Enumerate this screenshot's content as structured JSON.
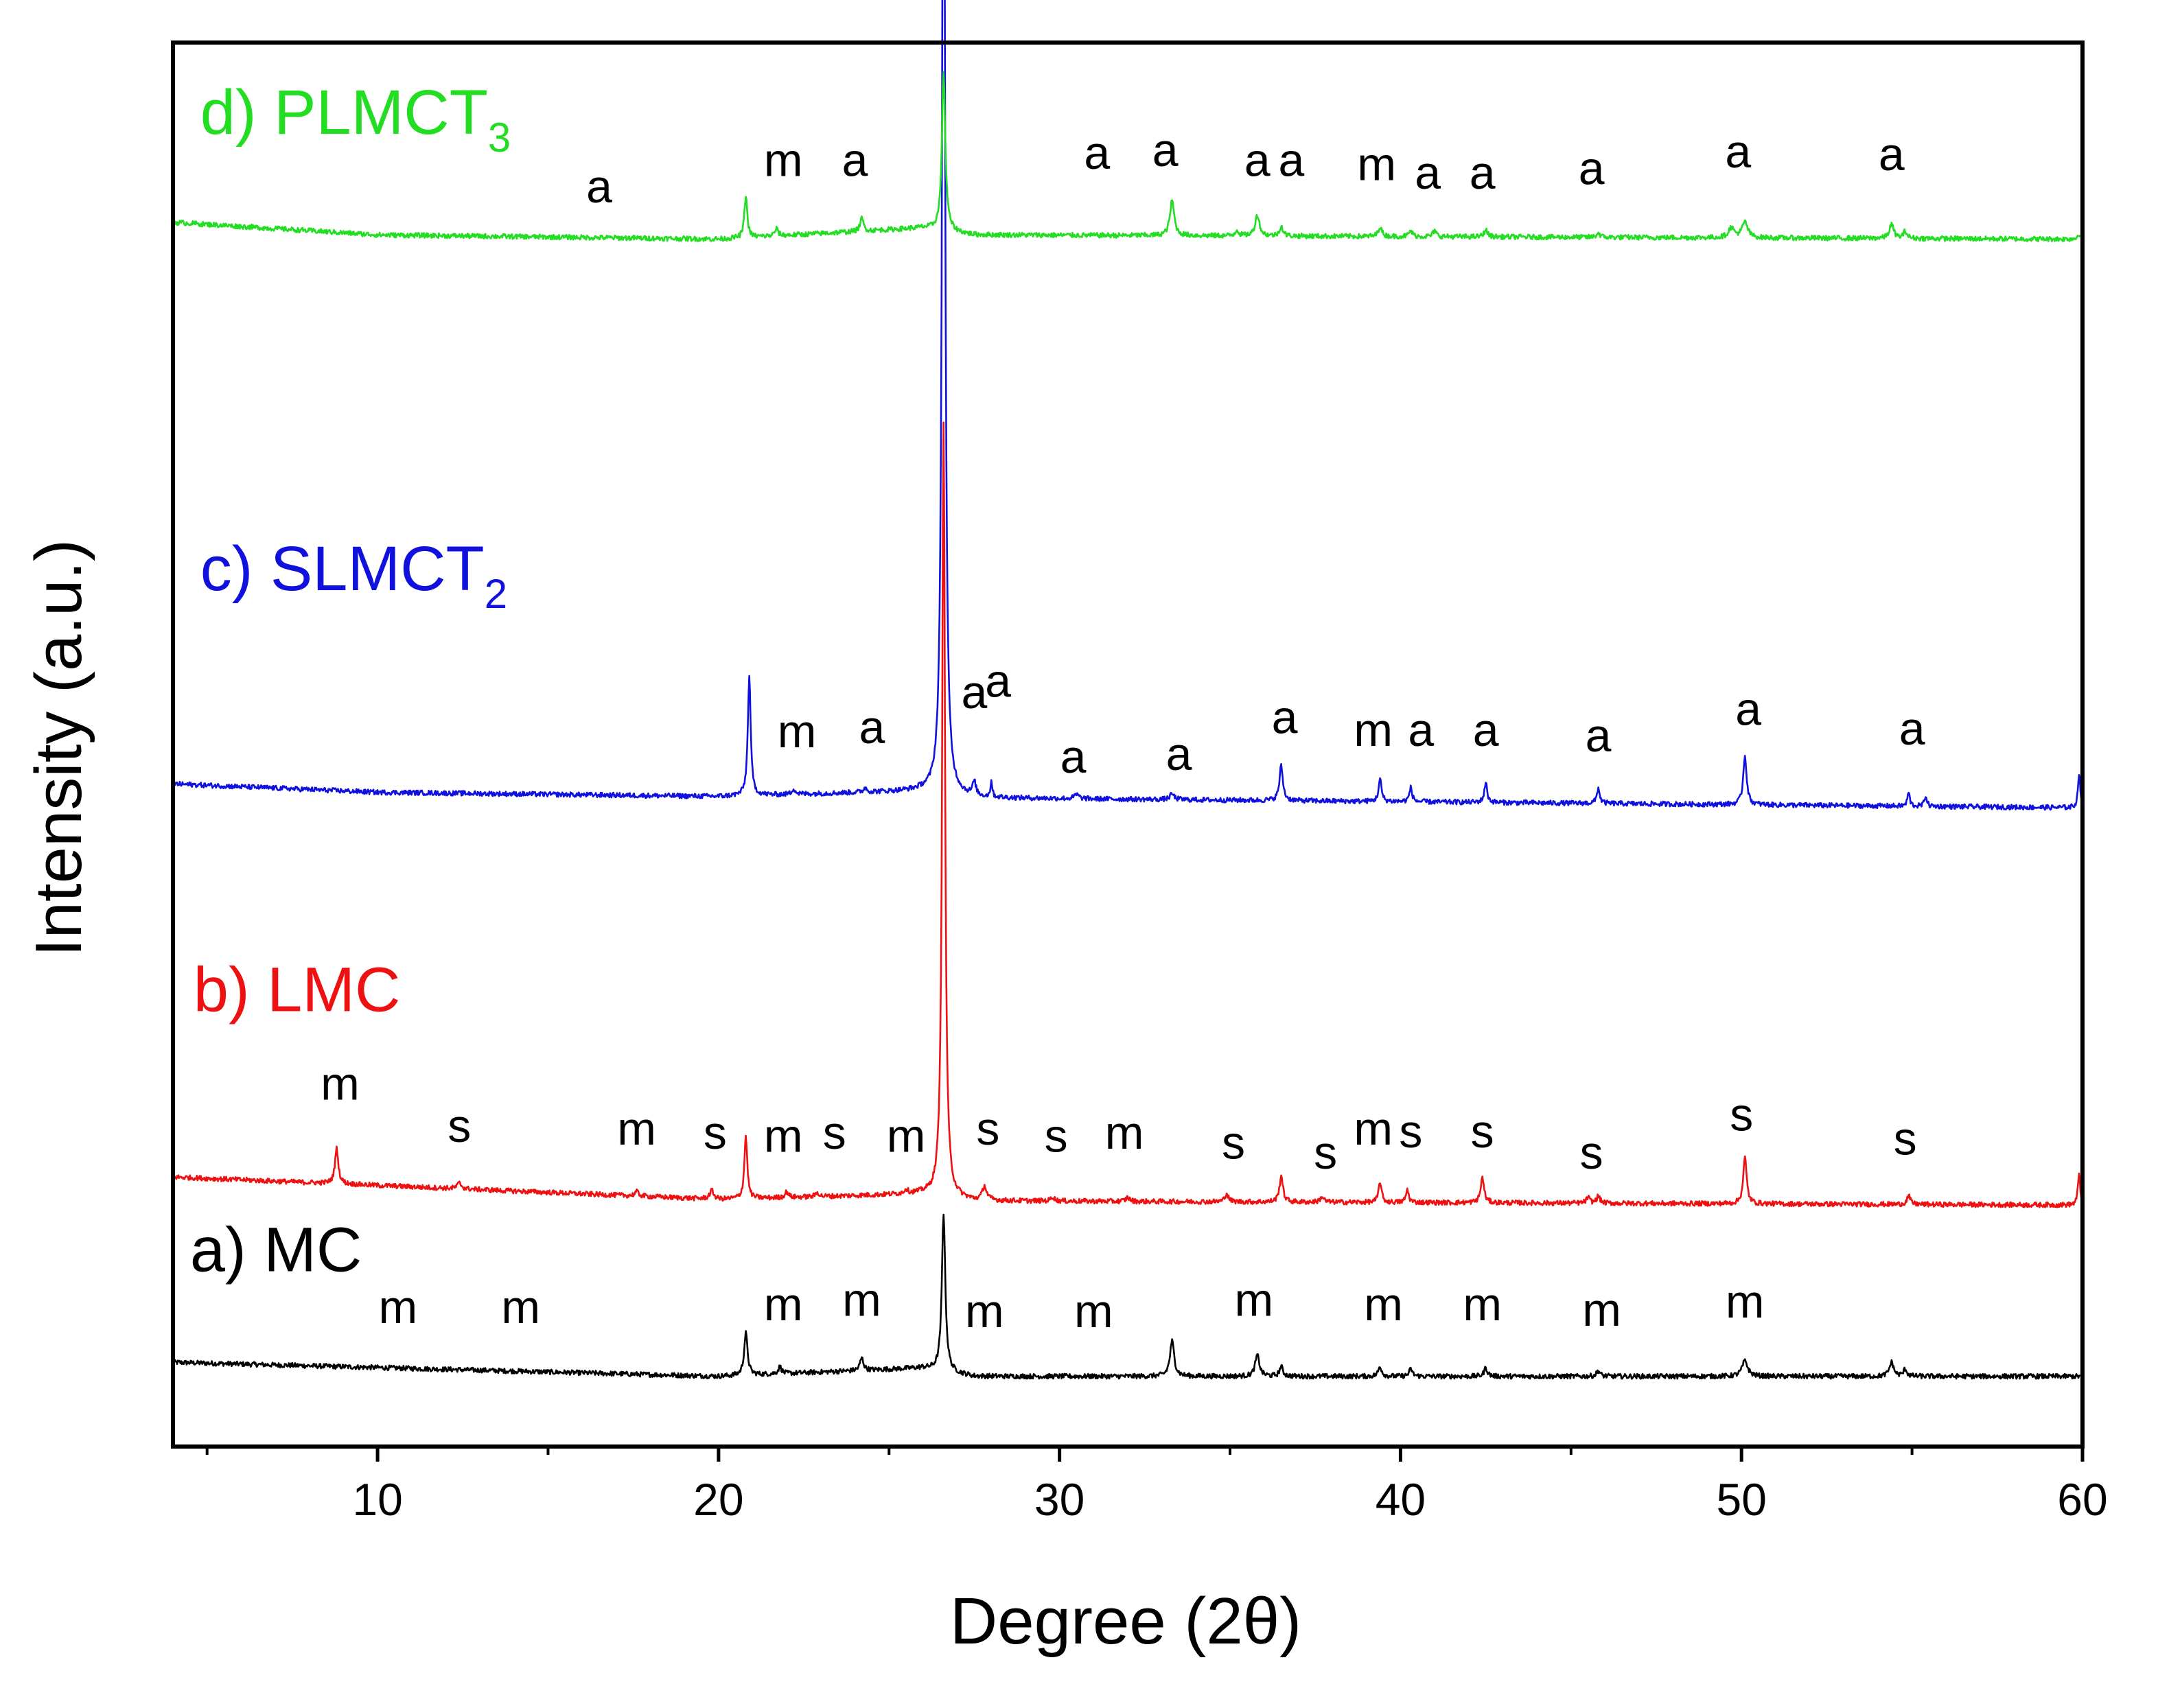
{
  "chart_data": {
    "type": "line",
    "title": "",
    "xlabel": "Degree (2θ)",
    "ylabel": "Intensity (a.u.)",
    "xlim": [
      4,
      60
    ],
    "ylim": [
      0,
      100
    ],
    "xticks": [
      10,
      20,
      30,
      40,
      50,
      60
    ],
    "grid": false,
    "series": [
      {
        "key": "mc",
        "name": "a) MC",
        "label_main": "a) MC",
        "label_sub": "",
        "color": "#000000",
        "baseline": [
          [
            4,
            6.0
          ],
          [
            20,
            5.0
          ],
          [
            26,
            5.6
          ],
          [
            27.5,
            5.0
          ],
          [
            60,
            5.0
          ]
        ],
        "peaks": [
          [
            20.8,
            3.0,
            0.12
          ],
          [
            21.8,
            0.5,
            0.12
          ],
          [
            24.2,
            0.9,
            0.12
          ],
          [
            26.6,
            11.3,
            0.12
          ],
          [
            33.3,
            2.5,
            0.15
          ],
          [
            35.8,
            1.5,
            0.15
          ],
          [
            36.5,
            0.7,
            0.12
          ],
          [
            39.4,
            0.7,
            0.12
          ],
          [
            40.3,
            0.5,
            0.12
          ],
          [
            42.5,
            0.6,
            0.12
          ],
          [
            45.8,
            0.4,
            0.12
          ],
          [
            50.1,
            1.1,
            0.2
          ],
          [
            54.4,
            1.0,
            0.15
          ],
          [
            54.8,
            0.5,
            0.12
          ]
        ],
        "annotations": [
          {
            "text": "m",
            "x": 10.6,
            "y": 8.8
          },
          {
            "text": "m",
            "x": 14.2,
            "y": 8.8
          },
          {
            "text": "m",
            "x": 21.9,
            "y": 9.0
          },
          {
            "text": "m",
            "x": 24.2,
            "y": 9.3
          },
          {
            "text": "m",
            "x": 27.8,
            "y": 8.5
          },
          {
            "text": "m",
            "x": 31.0,
            "y": 8.5
          },
          {
            "text": "m",
            "x": 35.7,
            "y": 9.3
          },
          {
            "text": "m",
            "x": 39.5,
            "y": 9.0
          },
          {
            "text": "m",
            "x": 42.4,
            "y": 9.0
          },
          {
            "text": "m",
            "x": 45.9,
            "y": 8.6
          },
          {
            "text": "m",
            "x": 50.1,
            "y": 9.2
          }
        ]
      },
      {
        "key": "lmc",
        "name": "b) LMC",
        "label_main": "b) LMC",
        "label_sub": "",
        "color": "#ee1111",
        "baseline": [
          [
            4,
            19.2
          ],
          [
            10,
            18.6
          ],
          [
            20,
            17.6
          ],
          [
            26,
            18.0
          ],
          [
            27.5,
            17.5
          ],
          [
            60,
            17.2
          ]
        ],
        "peaks": [
          [
            8.8,
            2.5,
            0.12
          ],
          [
            12.4,
            0.4,
            0.15
          ],
          [
            17.6,
            0.3,
            0.15
          ],
          [
            19.8,
            0.6,
            0.15
          ],
          [
            20.8,
            4.5,
            0.1
          ],
          [
            22.0,
            0.4,
            0.12
          ],
          [
            22.9,
            0.3,
            0.12
          ],
          [
            25.5,
            0.3,
            0.12
          ],
          [
            26.6,
            55.2,
            0.1
          ],
          [
            27.8,
            1.0,
            0.15
          ],
          [
            29.8,
            0.3,
            0.12
          ],
          [
            32.0,
            0.3,
            0.12
          ],
          [
            34.9,
            0.6,
            0.12
          ],
          [
            36.5,
            1.9,
            0.12
          ],
          [
            37.7,
            0.4,
            0.12
          ],
          [
            39.4,
            1.5,
            0.1
          ],
          [
            40.2,
            0.9,
            0.1
          ],
          [
            42.4,
            1.8,
            0.12
          ],
          [
            45.5,
            0.4,
            0.12
          ],
          [
            45.8,
            0.5,
            0.12
          ],
          [
            50.1,
            3.3,
            0.12
          ],
          [
            54.9,
            0.6,
            0.12
          ],
          [
            59.9,
            2.3,
            0.08
          ]
        ],
        "annotations": [
          {
            "text": "m",
            "x": 8.9,
            "y": 24.7
          },
          {
            "text": "s",
            "x": 12.4,
            "y": 21.7
          },
          {
            "text": "m",
            "x": 17.6,
            "y": 21.5
          },
          {
            "text": "s",
            "x": 19.9,
            "y": 21.2
          },
          {
            "text": "m",
            "x": 21.9,
            "y": 21.0
          },
          {
            "text": "s",
            "x": 23.4,
            "y": 21.2
          },
          {
            "text": "m",
            "x": 25.5,
            "y": 21.0
          },
          {
            "text": "s",
            "x": 27.9,
            "y": 21.5
          },
          {
            "text": "s",
            "x": 29.9,
            "y": 21.0
          },
          {
            "text": "m",
            "x": 31.9,
            "y": 21.2
          },
          {
            "text": "s",
            "x": 35.1,
            "y": 20.5
          },
          {
            "text": "s",
            "x": 37.8,
            "y": 19.8
          },
          {
            "text": "m",
            "x": 39.2,
            "y": 21.5
          },
          {
            "text": "s",
            "x": 40.3,
            "y": 21.3
          },
          {
            "text": "s",
            "x": 42.4,
            "y": 21.3
          },
          {
            "text": "s",
            "x": 45.6,
            "y": 19.8
          },
          {
            "text": "s",
            "x": 50.0,
            "y": 22.5
          },
          {
            "text": "s",
            "x": 54.8,
            "y": 20.8
          }
        ]
      },
      {
        "key": "slmct2",
        "name": "c) SLMCT2",
        "label_main": "c) SLMCT",
        "label_sub": "2",
        "color": "#1111dd",
        "baseline": [
          [
            4,
            47.2
          ],
          [
            10,
            46.6
          ],
          [
            20,
            46.3
          ],
          [
            26,
            46.7
          ],
          [
            27.5,
            46.2
          ],
          [
            60,
            45.5
          ]
        ],
        "peaks": [
          [
            20.9,
            8.5,
            0.1
          ],
          [
            22.2,
            0.4,
            0.12
          ],
          [
            24.3,
            0.3,
            0.12
          ],
          [
            26.6,
            86.5,
            0.1
          ],
          [
            27.5,
            1.0,
            0.12
          ],
          [
            28.0,
            1.2,
            0.06
          ],
          [
            30.5,
            0.3,
            0.15
          ],
          [
            33.3,
            0.4,
            0.15
          ],
          [
            36.5,
            2.5,
            0.12
          ],
          [
            39.4,
            1.6,
            0.1
          ],
          [
            40.3,
            1.0,
            0.1
          ],
          [
            42.5,
            1.4,
            0.1
          ],
          [
            45.8,
            1.1,
            0.1
          ],
          [
            50.1,
            3.5,
            0.12
          ],
          [
            54.9,
            1.0,
            0.08
          ],
          [
            55.4,
            0.8,
            0.08
          ],
          [
            59.9,
            2.5,
            0.08
          ]
        ],
        "annotations": [
          {
            "text": "m",
            "x": 22.3,
            "y": 49.8
          },
          {
            "text": "a",
            "x": 24.5,
            "y": 50.1
          },
          {
            "text": "a",
            "x": 27.5,
            "y": 52.6
          },
          {
            "text": "a",
            "x": 28.2,
            "y": 53.4
          },
          {
            "text": "a",
            "x": 30.4,
            "y": 48.0
          },
          {
            "text": "a",
            "x": 33.5,
            "y": 48.2
          },
          {
            "text": "a",
            "x": 36.6,
            "y": 50.8
          },
          {
            "text": "m",
            "x": 39.2,
            "y": 49.9
          },
          {
            "text": "a",
            "x": 40.6,
            "y": 49.9
          },
          {
            "text": "a",
            "x": 42.5,
            "y": 49.9
          },
          {
            "text": "a",
            "x": 45.8,
            "y": 49.5
          },
          {
            "text": "a",
            "x": 50.2,
            "y": 51.4
          },
          {
            "text": "a",
            "x": 55.0,
            "y": 50.0
          }
        ]
      },
      {
        "key": "plmct3",
        "name": "d) PLMCT3",
        "label_main": "d) PLMCT",
        "label_sub": "3",
        "color": "#22dd22",
        "baseline": [
          [
            4,
            87.2
          ],
          [
            10,
            86.3
          ],
          [
            20,
            86.0
          ],
          [
            26,
            86.8
          ],
          [
            27.5,
            86.3
          ],
          [
            60,
            86.0
          ]
        ],
        "peaks": [
          [
            20.8,
            3.0,
            0.1
          ],
          [
            21.7,
            0.5,
            0.12
          ],
          [
            24.2,
            0.9,
            0.12
          ],
          [
            26.6,
            11.3,
            0.12
          ],
          [
            33.3,
            2.5,
            0.15
          ],
          [
            35.2,
            0.4,
            0.12
          ],
          [
            35.8,
            1.5,
            0.15
          ],
          [
            36.5,
            0.7,
            0.12
          ],
          [
            39.4,
            0.7,
            0.12
          ],
          [
            40.3,
            0.4,
            0.12
          ],
          [
            41.0,
            0.4,
            0.12
          ],
          [
            42.5,
            0.5,
            0.12
          ],
          [
            45.8,
            0.3,
            0.12
          ],
          [
            49.7,
            0.7,
            0.2
          ],
          [
            50.1,
            1.1,
            0.2
          ],
          [
            54.4,
            1.0,
            0.15
          ],
          [
            54.8,
            0.5,
            0.12
          ],
          [
            59.9,
            0.4,
            0.1
          ]
        ],
        "annotations": [
          {
            "text": "a",
            "x": 16.5,
            "y": 88.6
          },
          {
            "text": "m",
            "x": 21.9,
            "y": 90.5
          },
          {
            "text": "a",
            "x": 24.0,
            "y": 90.5
          },
          {
            "text": "a",
            "x": 31.1,
            "y": 91.0
          },
          {
            "text": "a",
            "x": 33.1,
            "y": 91.2
          },
          {
            "text": "a",
            "x": 35.8,
            "y": 90.5
          },
          {
            "text": "a",
            "x": 36.8,
            "y": 90.5
          },
          {
            "text": "m",
            "x": 39.3,
            "y": 90.2
          },
          {
            "text": "a",
            "x": 40.8,
            "y": 89.6
          },
          {
            "text": "a",
            "x": 42.4,
            "y": 89.6
          },
          {
            "text": "a",
            "x": 45.6,
            "y": 89.9
          },
          {
            "text": "a",
            "x": 49.9,
            "y": 91.1
          },
          {
            "text": "a",
            "x": 54.4,
            "y": 90.9
          }
        ]
      }
    ],
    "series_labels": [
      {
        "series": "plmct3",
        "x": 4.8,
        "y": 93.5
      },
      {
        "series": "slmct2",
        "x": 4.8,
        "y": 61.0
      },
      {
        "series": "lmc",
        "x": 4.6,
        "y": 31.0
      },
      {
        "series": "mc",
        "x": 4.5,
        "y": 12.5
      }
    ]
  }
}
